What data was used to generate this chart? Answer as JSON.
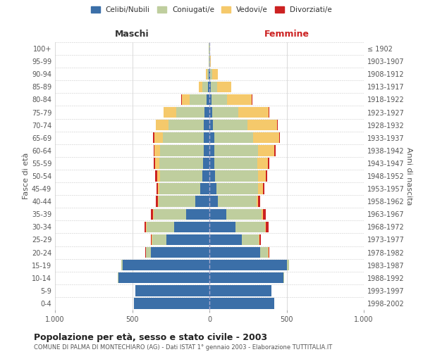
{
  "age_groups": [
    "0-4",
    "5-9",
    "10-14",
    "15-19",
    "20-24",
    "25-29",
    "30-34",
    "35-39",
    "40-44",
    "45-49",
    "50-54",
    "55-59",
    "60-64",
    "65-69",
    "70-74",
    "75-79",
    "80-84",
    "85-89",
    "90-94",
    "95-99",
    "100+"
  ],
  "birth_years": [
    "1998-2002",
    "1993-1997",
    "1988-1992",
    "1983-1987",
    "1978-1982",
    "1973-1977",
    "1968-1972",
    "1963-1967",
    "1958-1962",
    "1953-1957",
    "1948-1952",
    "1943-1947",
    "1938-1942",
    "1933-1937",
    "1928-1932",
    "1923-1927",
    "1918-1922",
    "1913-1917",
    "1908-1912",
    "1903-1907",
    "≤ 1902"
  ],
  "males": {
    "celibi": [
      490,
      480,
      590,
      560,
      380,
      280,
      230,
      150,
      90,
      60,
      45,
      40,
      35,
      35,
      35,
      30,
      20,
      10,
      5,
      2,
      2
    ],
    "coniugati": [
      0,
      0,
      5,
      10,
      30,
      90,
      175,
      210,
      240,
      265,
      275,
      285,
      285,
      265,
      230,
      185,
      110,
      35,
      10,
      2,
      2
    ],
    "vedovi": [
      0,
      0,
      0,
      1,
      2,
      3,
      5,
      5,
      5,
      10,
      20,
      25,
      35,
      55,
      80,
      80,
      50,
      25,
      10,
      2,
      1
    ],
    "divorziati": [
      0,
      0,
      0,
      1,
      3,
      5,
      12,
      12,
      10,
      8,
      10,
      10,
      8,
      12,
      4,
      3,
      2,
      0,
      0,
      0,
      0
    ]
  },
  "females": {
    "nubili": [
      420,
      400,
      480,
      500,
      330,
      210,
      170,
      110,
      55,
      45,
      35,
      30,
      30,
      30,
      25,
      20,
      15,
      10,
      5,
      2,
      2
    ],
    "coniugate": [
      0,
      0,
      5,
      15,
      50,
      110,
      190,
      230,
      250,
      270,
      280,
      280,
      285,
      255,
      220,
      165,
      100,
      40,
      15,
      2,
      2
    ],
    "vedove": [
      0,
      0,
      0,
      1,
      3,
      4,
      5,
      8,
      10,
      30,
      50,
      70,
      105,
      165,
      195,
      200,
      160,
      90,
      35,
      5,
      2
    ],
    "divorziate": [
      0,
      0,
      0,
      1,
      4,
      8,
      18,
      18,
      15,
      12,
      10,
      10,
      10,
      8,
      5,
      3,
      2,
      1,
      0,
      0,
      0
    ]
  },
  "colors": {
    "celibi_nubili": "#3B6FA8",
    "coniugati": "#BFCE9E",
    "vedovi": "#F5C96B",
    "divorziati": "#CC2222"
  },
  "title": "Popolazione per età, sesso e stato civile - 2003",
  "subtitle": "COMUNE DI PALMA DI MONTECHIARO (AG) - Dati ISTAT 1° gennaio 2003 - Elaborazione TUTTITALIA.IT",
  "xlabel_left": "Maschi",
  "xlabel_right": "Femmine",
  "ylabel_left": "Fasce di età",
  "ylabel_right": "Anni di nascita",
  "xlim": 1000,
  "legend_labels": [
    "Celibi/Nubili",
    "Coniugati/e",
    "Vedovi/e",
    "Divorziati/e"
  ],
  "background_color": "#ffffff",
  "grid_color": "#cccccc"
}
